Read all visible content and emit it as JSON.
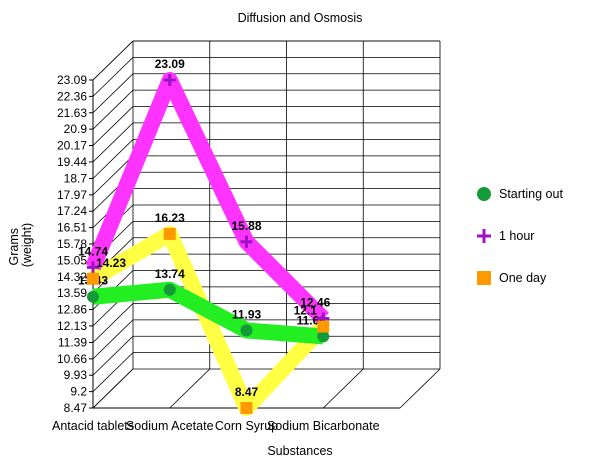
{
  "chart_data": {
    "type": "line",
    "title": "Diffusion and Osmosis",
    "xlabel": "Substances",
    "ylabel": [
      "Grams",
      "(weight)"
    ],
    "categories": [
      "Antacid tablets",
      "Sodium Acetate",
      "Corn Syrup",
      "Sodium Bicarbonate"
    ],
    "yticks": [
      "8.47",
      "9.2",
      "9.93",
      "10.66",
      "11.39",
      "12.13",
      "12.86",
      "13.59",
      "14.32",
      "15.05",
      "15.78",
      "16.51",
      "17.24",
      "17.97",
      "18.7",
      "19.44",
      "20.17",
      "20.9",
      "21.63",
      "22.36",
      "23.09"
    ],
    "ylim": [
      8.47,
      23.09
    ],
    "grid": true,
    "legend_position": "right",
    "series": [
      {
        "name": "Starting out",
        "values": [
          13.43,
          13.74,
          11.93,
          11.66
        ],
        "labels": [
          "13.43",
          "13.74",
          "11.93",
          "11.66"
        ],
        "color": "#22ee22",
        "marker": "circle",
        "marker_color": "#159a3a"
      },
      {
        "name": "1 hour",
        "values": [
          14.74,
          23.09,
          15.88,
          12.46
        ],
        "labels": [
          "14.74",
          "23.09",
          "15.88",
          "12.46"
        ],
        "color": "#ff33ff",
        "marker": "plus",
        "marker_color": "#a010c8"
      },
      {
        "name": "One day",
        "values": [
          14.23,
          16.23,
          8.47,
          12.1
        ],
        "labels": [
          "14.23",
          "16.23",
          "8.47",
          "12.1"
        ],
        "color": "#ffff44",
        "marker": "square",
        "marker_color": "#ff9900"
      }
    ]
  }
}
